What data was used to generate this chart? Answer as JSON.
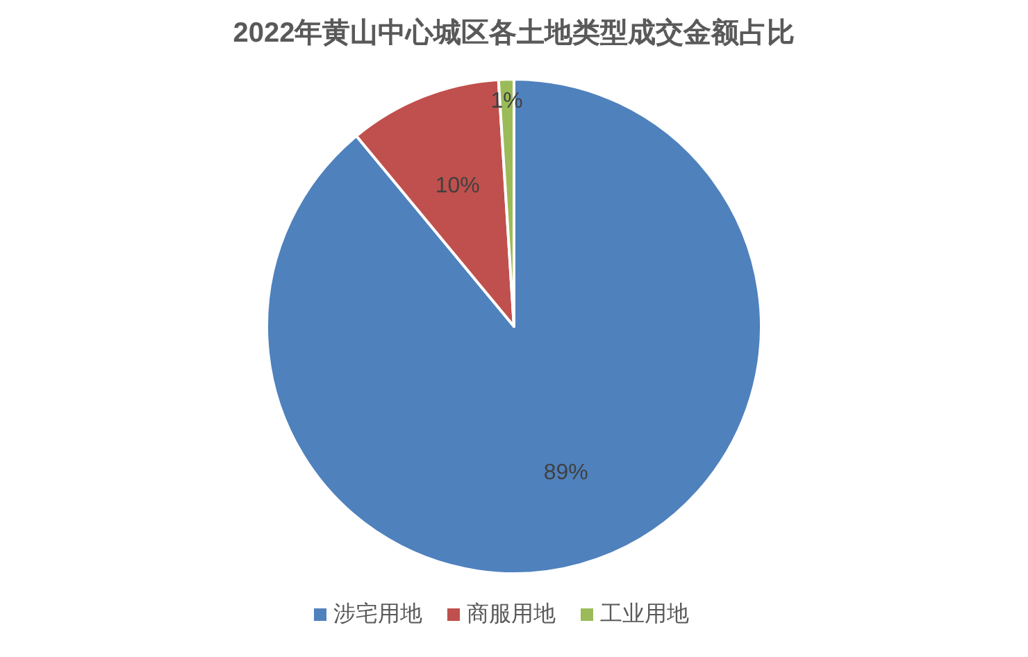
{
  "chart_data": {
    "type": "pie",
    "title": "2022年黄山中心城区各土地类型成交金额占比",
    "categories": [
      "涉宅用地",
      "商服用地",
      "工业用地"
    ],
    "values": [
      89,
      10,
      1
    ],
    "colors": [
      "#4f81bd",
      "#c0504d",
      "#9bbb59"
    ],
    "value_labels": [
      "89%",
      "10%",
      "1%"
    ],
    "legend": "bottom"
  }
}
